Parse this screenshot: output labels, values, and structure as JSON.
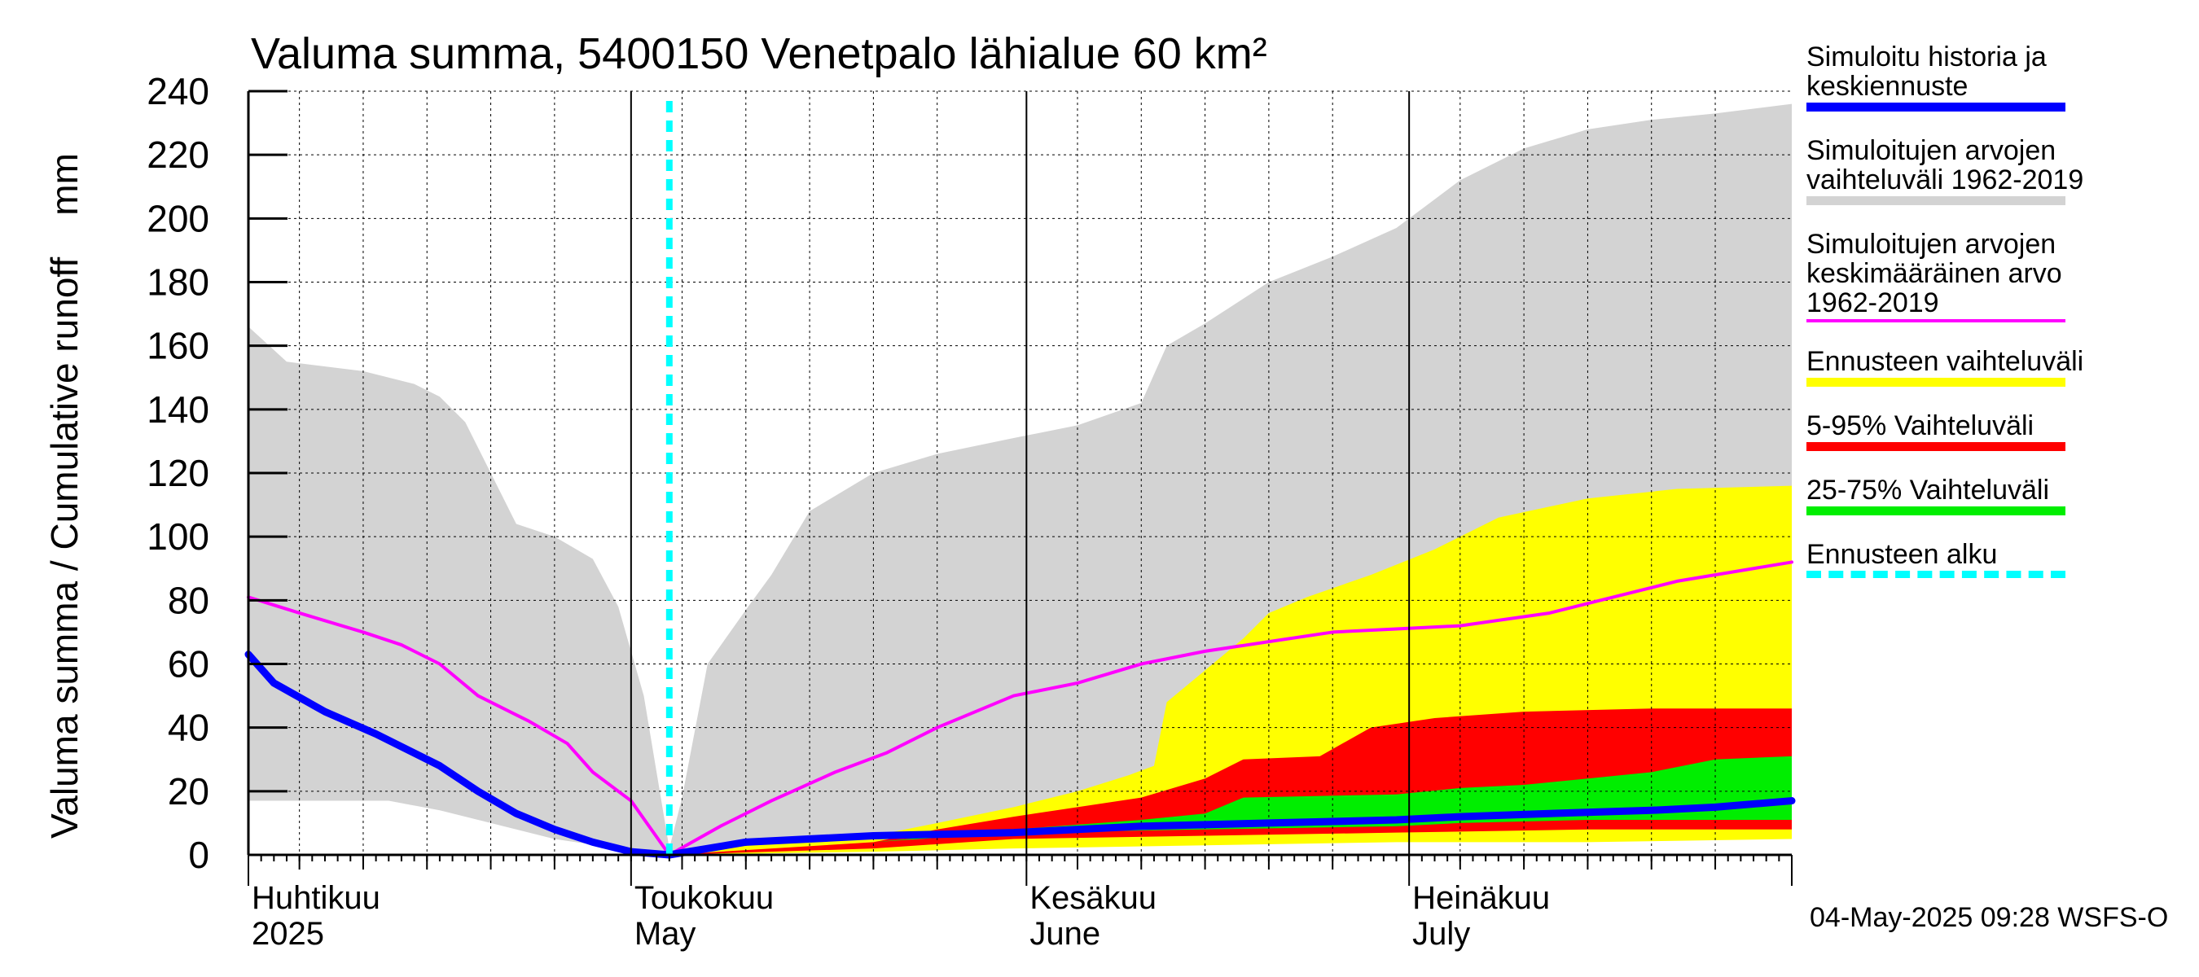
{
  "chart_data": {
    "type": "area",
    "title": "Valuma summa, 5400150 Venetpalo lähialue 60 km²",
    "ylabel": "Valuma summa / Cumulative runoff    mm",
    "ylim": [
      0,
      240
    ],
    "yticks": [
      0,
      20,
      40,
      60,
      80,
      100,
      120,
      140,
      160,
      180,
      200,
      220,
      240
    ],
    "xlim": [
      "2025-04-01",
      "2025-07-31"
    ],
    "grid": true,
    "month_labels": [
      {
        "fi": "Huhtikuu",
        "en": "2025",
        "date": "2025-04-01"
      },
      {
        "fi": "Toukokuu",
        "en": "May",
        "date": "2025-05-01"
      },
      {
        "fi": "Kesäkuu",
        "en": "June",
        "date": "2025-06-01"
      },
      {
        "fi": "Heinäkuu",
        "en": "July",
        "date": "2025-07-01"
      }
    ],
    "forecast_start": "2025-05-04",
    "series": [
      {
        "name": "Simuloitujen arvojen vaihteluväli 1962-2019",
        "kind": "band",
        "color": "#d3d3d3",
        "upper": [
          [
            "2025-04-01",
            166
          ],
          [
            "2025-04-04",
            155
          ],
          [
            "2025-04-10",
            152
          ],
          [
            "2025-04-14",
            148
          ],
          [
            "2025-04-16",
            144
          ],
          [
            "2025-04-18",
            136
          ],
          [
            "2025-04-20",
            120
          ],
          [
            "2025-04-22",
            104
          ],
          [
            "2025-04-25",
            100
          ],
          [
            "2025-04-28",
            93
          ],
          [
            "2025-04-30",
            78
          ],
          [
            "2025-05-02",
            50
          ],
          [
            "2025-05-04",
            2
          ],
          [
            "2025-05-05",
            18
          ],
          [
            "2025-05-07",
            60
          ],
          [
            "2025-05-10",
            77
          ],
          [
            "2025-05-12",
            88
          ],
          [
            "2025-05-15",
            108
          ],
          [
            "2025-05-20",
            120
          ],
          [
            "2025-05-25",
            126
          ],
          [
            "2025-05-31",
            131
          ],
          [
            "2025-06-05",
            135
          ],
          [
            "2025-06-10",
            142
          ],
          [
            "2025-06-12",
            160
          ],
          [
            "2025-06-15",
            167
          ],
          [
            "2025-06-20",
            180
          ],
          [
            "2025-06-25",
            188
          ],
          [
            "2025-06-30",
            197
          ],
          [
            "2025-07-05",
            212
          ],
          [
            "2025-07-10",
            222
          ],
          [
            "2025-07-15",
            228
          ],
          [
            "2025-07-20",
            231
          ],
          [
            "2025-07-25",
            233
          ],
          [
            "2025-07-31",
            236
          ]
        ],
        "lower": [
          [
            "2025-04-01",
            17
          ],
          [
            "2025-04-12",
            17
          ],
          [
            "2025-04-16",
            14
          ],
          [
            "2025-04-20",
            10
          ],
          [
            "2025-04-25",
            5
          ],
          [
            "2025-04-30",
            2
          ],
          [
            "2025-05-04",
            0
          ],
          [
            "2025-05-10",
            1
          ],
          [
            "2025-05-20",
            2
          ],
          [
            "2025-05-31",
            4
          ],
          [
            "2025-06-15",
            6
          ],
          [
            "2025-06-30",
            8
          ],
          [
            "2025-07-15",
            10
          ],
          [
            "2025-07-31",
            11
          ]
        ]
      },
      {
        "name": "Ennusteen vaihteluväli",
        "kind": "band",
        "color": "#ffff00",
        "upper": [
          [
            "2025-05-04",
            0
          ],
          [
            "2025-05-10",
            3
          ],
          [
            "2025-05-20",
            6
          ],
          [
            "2025-05-25",
            10
          ],
          [
            "2025-05-31",
            15
          ],
          [
            "2025-06-05",
            20
          ],
          [
            "2025-06-09",
            25
          ],
          [
            "2025-06-11",
            28
          ],
          [
            "2025-06-12",
            48
          ],
          [
            "2025-06-15",
            58
          ],
          [
            "2025-06-18",
            68
          ],
          [
            "2025-06-20",
            76
          ],
          [
            "2025-06-23",
            81
          ],
          [
            "2025-06-28",
            88
          ],
          [
            "2025-07-03",
            96
          ],
          [
            "2025-07-08",
            106
          ],
          [
            "2025-07-15",
            112
          ],
          [
            "2025-07-22",
            115
          ],
          [
            "2025-07-31",
            116
          ]
        ],
        "lower": [
          [
            "2025-05-04",
            0
          ],
          [
            "2025-05-20",
            1
          ],
          [
            "2025-05-31",
            2
          ],
          [
            "2025-06-15",
            3
          ],
          [
            "2025-06-30",
            4
          ],
          [
            "2025-07-15",
            4
          ],
          [
            "2025-07-31",
            5
          ]
        ]
      },
      {
        "name": "5-95% Vaihteluväli",
        "kind": "band",
        "color": "#ff0000",
        "upper": [
          [
            "2025-05-04",
            0
          ],
          [
            "2025-05-20",
            4
          ],
          [
            "2025-05-25",
            8
          ],
          [
            "2025-05-31",
            12
          ],
          [
            "2025-06-05",
            15
          ],
          [
            "2025-06-10",
            18
          ],
          [
            "2025-06-15",
            24
          ],
          [
            "2025-06-18",
            30
          ],
          [
            "2025-06-24",
            31
          ],
          [
            "2025-06-28",
            40
          ],
          [
            "2025-07-03",
            43
          ],
          [
            "2025-07-10",
            45
          ],
          [
            "2025-07-20",
            46
          ],
          [
            "2025-07-31",
            46
          ]
        ],
        "lower": [
          [
            "2025-05-04",
            0
          ],
          [
            "2025-05-20",
            2
          ],
          [
            "2025-05-31",
            5
          ],
          [
            "2025-06-15",
            6
          ],
          [
            "2025-06-30",
            7
          ],
          [
            "2025-07-15",
            8
          ],
          [
            "2025-07-31",
            8
          ]
        ]
      },
      {
        "name": "25-75% Vaihteluväli",
        "kind": "band",
        "color": "#00ee00",
        "upper": [
          [
            "2025-05-04",
            0
          ],
          [
            "2025-05-20",
            4
          ],
          [
            "2025-05-31",
            8
          ],
          [
            "2025-06-10",
            11
          ],
          [
            "2025-06-15",
            13
          ],
          [
            "2025-06-18",
            18
          ],
          [
            "2025-06-30",
            19
          ],
          [
            "2025-07-05",
            21
          ],
          [
            "2025-07-10",
            22
          ],
          [
            "2025-07-15",
            24
          ],
          [
            "2025-07-20",
            26
          ],
          [
            "2025-07-25",
            30
          ],
          [
            "2025-07-31",
            31
          ]
        ],
        "lower": [
          [
            "2025-05-04",
            0
          ],
          [
            "2025-05-20",
            4
          ],
          [
            "2025-05-31",
            7
          ],
          [
            "2025-06-15",
            8
          ],
          [
            "2025-06-30",
            9
          ],
          [
            "2025-07-05",
            10
          ],
          [
            "2025-07-15",
            11
          ],
          [
            "2025-07-31",
            11
          ]
        ]
      },
      {
        "name": "Simuloitujen arvojen keskimääräinen arvo 1962-2019",
        "kind": "line",
        "color": "#ff00ff",
        "points": [
          [
            "2025-04-01",
            81
          ],
          [
            "2025-04-05",
            76
          ],
          [
            "2025-04-10",
            70
          ],
          [
            "2025-04-13",
            66
          ],
          [
            "2025-04-16",
            60
          ],
          [
            "2025-04-19",
            50
          ],
          [
            "2025-04-23",
            42
          ],
          [
            "2025-04-26",
            35
          ],
          [
            "2025-04-28",
            26
          ],
          [
            "2025-05-01",
            17
          ],
          [
            "2025-05-04",
            0
          ],
          [
            "2025-05-08",
            9
          ],
          [
            "2025-05-12",
            17
          ],
          [
            "2025-05-17",
            26
          ],
          [
            "2025-05-21",
            32
          ],
          [
            "2025-05-25",
            40
          ],
          [
            "2025-05-31",
            50
          ],
          [
            "2025-06-05",
            54
          ],
          [
            "2025-06-10",
            60
          ],
          [
            "2025-06-15",
            64
          ],
          [
            "2025-06-20",
            67
          ],
          [
            "2025-06-25",
            70
          ],
          [
            "2025-06-30",
            71
          ],
          [
            "2025-07-05",
            72
          ],
          [
            "2025-07-12",
            76
          ],
          [
            "2025-07-16",
            80
          ],
          [
            "2025-07-22",
            86
          ],
          [
            "2025-07-28",
            90
          ],
          [
            "2025-07-31",
            92
          ]
        ]
      },
      {
        "name": "Simuloitu historia ja keskiennuste",
        "kind": "line",
        "color": "#0000ff",
        "points": [
          [
            "2025-04-01",
            63
          ],
          [
            "2025-04-03",
            54
          ],
          [
            "2025-04-07",
            45
          ],
          [
            "2025-04-11",
            38
          ],
          [
            "2025-04-13",
            34
          ],
          [
            "2025-04-16",
            28
          ],
          [
            "2025-04-19",
            20
          ],
          [
            "2025-04-22",
            13
          ],
          [
            "2025-04-25",
            8
          ],
          [
            "2025-04-28",
            4
          ],
          [
            "2025-05-01",
            1
          ],
          [
            "2025-05-04",
            0
          ],
          [
            "2025-05-10",
            4
          ],
          [
            "2025-05-20",
            6
          ],
          [
            "2025-05-31",
            7
          ],
          [
            "2025-06-10",
            9
          ],
          [
            "2025-06-20",
            10
          ],
          [
            "2025-06-30",
            11
          ],
          [
            "2025-07-05",
            12
          ],
          [
            "2025-07-12",
            13
          ],
          [
            "2025-07-20",
            14
          ],
          [
            "2025-07-25",
            15
          ],
          [
            "2025-07-31",
            17
          ]
        ]
      }
    ]
  },
  "legend": [
    {
      "label": "Simuloitu historia ja\nkeskiennuste",
      "color": "#0000ff",
      "style": "thick-line"
    },
    {
      "label": "Simuloitujen arvojen\nvaihteluväli 1962-2019",
      "color": "#d3d3d3",
      "style": "thick-line"
    },
    {
      "label": "Simuloitujen arvojen\nkeskimääräinen arvo\n   1962-2019",
      "color": "#ff00ff",
      "style": "thin-line"
    },
    {
      "label": "Ennusteen vaihteluväli",
      "color": "#ffff00",
      "style": "thick-line"
    },
    {
      "label": "5-95% Vaihteluväli",
      "color": "#ff0000",
      "style": "thick-line"
    },
    {
      "label": "25-75% Vaihteluväli",
      "color": "#00ee00",
      "style": "thick-line"
    },
    {
      "label": "Ennusteen alku",
      "color": "#00ffff",
      "style": "dashed-line"
    }
  ],
  "timestamp": "04-May-2025 09:28 WSFS-O"
}
